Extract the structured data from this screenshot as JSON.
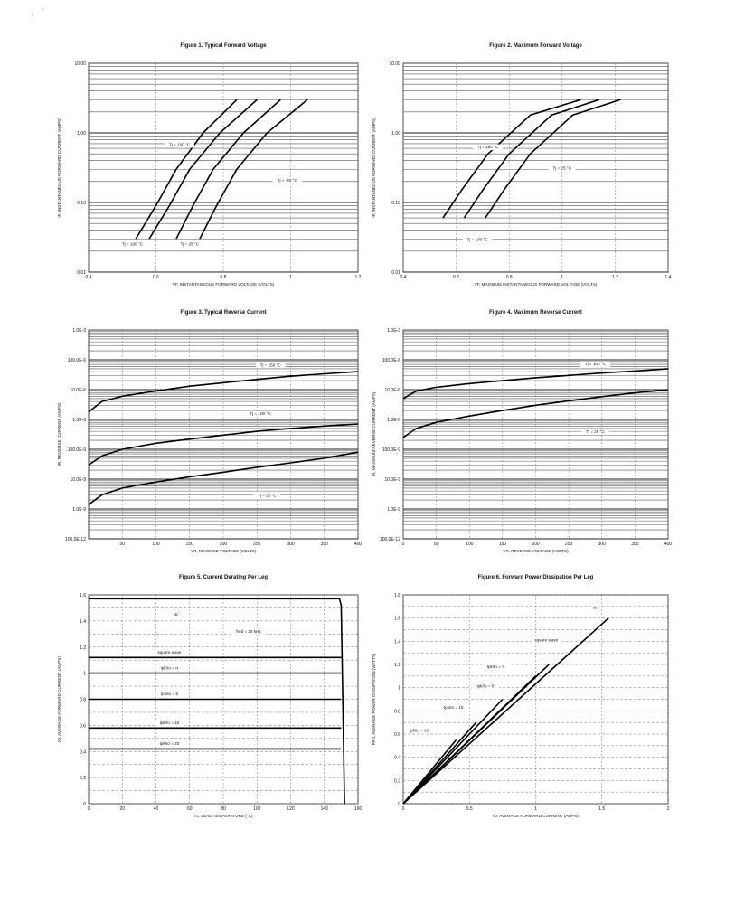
{
  "chart_data": [
    {
      "id": "fig1",
      "type": "line",
      "title": "Figure 1. Typical Forward Voltage",
      "xlabel": "VF, INSTANTANEOUS FORWARD VOLTAGE (VOLTS)",
      "ylabel": "IF, INSTANTANEOUS FORWARD CURRENT (AMPS)",
      "x_scale": "linear",
      "y_scale": "log",
      "xlim": [
        0.4,
        1.2
      ],
      "ylim": [
        0.01,
        10
      ],
      "x_ticks": [
        0.4,
        0.6,
        0.8,
        1.0,
        1.2
      ],
      "x_tick_labels": [
        "0.4",
        "0.6",
        "0.8",
        "1",
        "1.2"
      ],
      "y_ticks": [
        0.01,
        0.1,
        1,
        10
      ],
      "y_tick_labels": [
        "0.01",
        "0.10",
        "1.00",
        "10.00"
      ],
      "series": [
        {
          "points": [
            [
              0.54,
              0.03
            ],
            [
              0.6,
              0.09
            ],
            [
              0.66,
              0.3
            ],
            [
              0.74,
              1.0
            ],
            [
              0.84,
              3.0
            ]
          ]
        },
        {
          "points": [
            [
              0.58,
              0.03
            ],
            [
              0.64,
              0.09
            ],
            [
              0.7,
              0.3
            ],
            [
              0.79,
              1.0
            ],
            [
              0.9,
              3.0
            ]
          ]
        },
        {
          "points": [
            [
              0.66,
              0.03
            ],
            [
              0.71,
              0.09
            ],
            [
              0.77,
              0.3
            ],
            [
              0.86,
              1.0
            ],
            [
              0.97,
              3.0
            ]
          ]
        },
        {
          "points": [
            [
              0.73,
              0.03
            ],
            [
              0.78,
              0.09
            ],
            [
              0.84,
              0.3
            ],
            [
              0.93,
              1.0
            ],
            [
              1.05,
              3.0
            ]
          ]
        }
      ],
      "annotations": [
        {
          "text": "Tj = 150 °C",
          "x": 0.67,
          "y": 0.65
        },
        {
          "text": "Tj = -40 °C",
          "x": 0.99,
          "y": 0.2
        },
        {
          "text": "Tj = 100 °C",
          "x": 0.53,
          "y": 0.024
        },
        {
          "text": "Tj = 25 °C",
          "x": 0.7,
          "y": 0.024
        }
      ]
    },
    {
      "id": "fig2",
      "type": "line",
      "title": "Figure 2. Maximum Forward Voltage",
      "xlabel": "VF, MAXIMUM INSTANTANEOUS FORWARD VOLTAGE (VOLTS)",
      "ylabel": "IF, INSTANTANEOUS FORWARD CURRENT (AMPS)",
      "x_scale": "linear",
      "y_scale": "log",
      "xlim": [
        0.4,
        1.4
      ],
      "ylim": [
        0.01,
        10
      ],
      "x_ticks": [
        0.4,
        0.6,
        0.8,
        1.0,
        1.2,
        1.4
      ],
      "x_tick_labels": [
        "0.4",
        "0.6",
        "0.8",
        "1",
        "1.2",
        "1.4"
      ],
      "y_ticks": [
        0.01,
        0.1,
        1,
        10
      ],
      "y_tick_labels": [
        "0.01",
        "0.10",
        "1.00",
        "10.00"
      ],
      "series": [
        {
          "points": [
            [
              0.55,
              0.06
            ],
            [
              0.62,
              0.15
            ],
            [
              0.72,
              0.5
            ],
            [
              0.88,
              1.8
            ],
            [
              1.07,
              3.0
            ]
          ]
        },
        {
          "points": [
            [
              0.63,
              0.06
            ],
            [
              0.7,
              0.15
            ],
            [
              0.8,
              0.5
            ],
            [
              0.96,
              1.8
            ],
            [
              1.14,
              3.0
            ]
          ]
        },
        {
          "points": [
            [
              0.71,
              0.06
            ],
            [
              0.78,
              0.15
            ],
            [
              0.88,
              0.5
            ],
            [
              1.04,
              1.8
            ],
            [
              1.22,
              3.0
            ]
          ]
        }
      ],
      "annotations": [
        {
          "text": "Tj = 150 °C",
          "x": 0.72,
          "y": 0.6
        },
        {
          "text": "Tj = 25 °C",
          "x": 1.0,
          "y": 0.3
        },
        {
          "text": "Tj = 100 °C",
          "x": 0.68,
          "y": 0.028
        }
      ]
    },
    {
      "id": "fig3",
      "type": "line",
      "title": "Figure 3. Typical Reverse Current",
      "xlabel": "VR, REVERSE VOLTAGE (VOLTS)",
      "ylabel": "IR, REVERSE CURRENT (AMPS)",
      "x_scale": "linear",
      "y_scale": "log",
      "xlim": [
        0,
        400
      ],
      "ylim": [
        1e-10,
        0.001
      ],
      "x_ticks": [
        50,
        100,
        150,
        200,
        250,
        300,
        350,
        400
      ],
      "x_tick_labels": [
        "50",
        "100",
        "150",
        "200",
        "250",
        "300",
        "350",
        "400"
      ],
      "y_ticks": [
        1e-10,
        1e-09,
        1e-08,
        1e-07,
        1e-06,
        1e-05,
        0.0001,
        0.001
      ],
      "y_tick_labels": [
        "100.0E-12",
        "1.0E-9",
        "10.0E-9",
        "100.0E-9",
        "1.0E-6",
        "10.0E-6",
        "100.0E-6",
        "1.0E-3"
      ],
      "series": [
        {
          "points": [
            [
              0,
              1.8e-06
            ],
            [
              20,
              4e-06
            ],
            [
              50,
              6e-06
            ],
            [
              100,
              9e-06
            ],
            [
              150,
              1.3e-05
            ],
            [
              200,
              1.7e-05
            ],
            [
              250,
              2.2e-05
            ],
            [
              300,
              2.8e-05
            ],
            [
              350,
              3.4e-05
            ],
            [
              400,
              4e-05
            ]
          ]
        },
        {
          "points": [
            [
              0,
              3e-08
            ],
            [
              20,
              6e-08
            ],
            [
              50,
              1e-07
            ],
            [
              100,
              1.6e-07
            ],
            [
              150,
              2.2e-07
            ],
            [
              200,
              3e-07
            ],
            [
              250,
              4e-07
            ],
            [
              300,
              5e-07
            ],
            [
              350,
              6e-07
            ],
            [
              400,
              7e-07
            ]
          ]
        },
        {
          "points": [
            [
              0,
              1.4e-09
            ],
            [
              20,
              3e-09
            ],
            [
              50,
              5e-09
            ],
            [
              100,
              8e-09
            ],
            [
              150,
              1.2e-08
            ],
            [
              200,
              1.7e-08
            ],
            [
              250,
              2.5e-08
            ],
            [
              300,
              3.5e-08
            ],
            [
              350,
              5e-08
            ],
            [
              400,
              8e-08
            ]
          ]
        }
      ],
      "annotations": [
        {
          "text": "Tj = 150 °C",
          "x": 270,
          "y": 6e-05
        },
        {
          "text": "Tj = 100 °C",
          "x": 255,
          "y": 1.4e-06
        },
        {
          "text": "Tj = 25 °C",
          "x": 265,
          "y": 2.6e-09
        }
      ]
    },
    {
      "id": "fig4",
      "type": "line",
      "title": "Figure 4. Maximum Reverse Current",
      "xlabel": "VR, REVERSE VOLTAGE (VOLTS)",
      "ylabel": "IR, MAXIMUM REVERSE CURRENT (AMPS)",
      "x_scale": "linear",
      "y_scale": "log",
      "xlim": [
        0,
        400
      ],
      "ylim": [
        1e-10,
        0.001
      ],
      "x_ticks": [
        0,
        50,
        100,
        150,
        200,
        250,
        300,
        350,
        400
      ],
      "x_tick_labels": [
        "0",
        "50",
        "100",
        "150",
        "200",
        "250",
        "300",
        "350",
        "400"
      ],
      "y_ticks": [
        1e-10,
        1e-09,
        1e-08,
        1e-07,
        1e-06,
        1e-05,
        0.0001,
        0.001
      ],
      "y_tick_labels": [
        "100.0E-12",
        "1.0E-9",
        "10.0E-9",
        "100.0E-9",
        "1.0E-6",
        "10.0E-6",
        "100.0E-6",
        "1.0E-3"
      ],
      "series": [
        {
          "points": [
            [
              0,
              5e-06
            ],
            [
              20,
              9e-06
            ],
            [
              50,
              1.2e-05
            ],
            [
              100,
              1.6e-05
            ],
            [
              150,
              2e-05
            ],
            [
              200,
              2.5e-05
            ],
            [
              250,
              3e-05
            ],
            [
              300,
              3.6e-05
            ],
            [
              350,
              4.2e-05
            ],
            [
              400,
              5e-05
            ]
          ]
        },
        {
          "points": [
            [
              0,
              2.5e-07
            ],
            [
              20,
              5e-07
            ],
            [
              50,
              8e-07
            ],
            [
              100,
              1.3e-06
            ],
            [
              150,
              2e-06
            ],
            [
              200,
              3e-06
            ],
            [
              250,
              4.2e-06
            ],
            [
              300,
              5.8e-06
            ],
            [
              350,
              7.8e-06
            ],
            [
              400,
              1e-05
            ]
          ]
        }
      ],
      "annotations": [
        {
          "text": "Tj = 100 °C",
          "x": 290,
          "y": 6.5e-05
        },
        {
          "text": "Tj = 25 °C",
          "x": 290,
          "y": 3.5e-07
        }
      ]
    },
    {
      "id": "fig5",
      "type": "line",
      "title": "Figure 5. Current Derating Per Leg",
      "xlabel": "TL, LEAD TEMPERATURE (°C)",
      "ylabel": "IO, AVERAGE FORWARD CURRENT (AMPS)",
      "x_scale": "linear",
      "y_scale": "linear",
      "xlim": [
        0,
        160
      ],
      "ylim": [
        0,
        1.6
      ],
      "x_ticks": [
        0,
        20,
        40,
        60,
        80,
        100,
        120,
        140,
        160
      ],
      "x_tick_labels": [
        "0",
        "20",
        "40",
        "60",
        "80",
        "100",
        "120",
        "140",
        "160"
      ],
      "y_ticks": [
        0,
        0.2,
        0.4,
        0.6,
        0.8,
        1.0,
        1.2,
        1.4,
        1.6
      ],
      "y_tick_labels": [
        "0",
        "0.2",
        "0.4",
        "0.6",
        "0.8",
        "1",
        "1.2",
        "1.4",
        "1.6"
      ],
      "series": [
        {
          "name": "dc",
          "points": [
            [
              0,
              1.57
            ],
            [
              149,
              1.57
            ],
            [
              150,
              1.52
            ],
            [
              152,
              0
            ]
          ]
        },
        {
          "name": "square wave",
          "points": [
            [
              0,
              1.12
            ],
            [
              150,
              1.12
            ]
          ]
        },
        {
          "name": "Ipk/Io = π",
          "points": [
            [
              0,
              1.0
            ],
            [
              150,
              1.0
            ]
          ]
        },
        {
          "name": "Ipk/Io = 5",
          "points": [
            [
              0,
              0.8
            ],
            [
              150,
              0.8
            ]
          ]
        },
        {
          "name": "Ipk/Io = 10",
          "points": [
            [
              0,
              0.58
            ],
            [
              150,
              0.58
            ]
          ]
        },
        {
          "name": "Ipk/Io = 20",
          "points": [
            [
              0,
              0.42
            ],
            [
              150,
              0.42
            ]
          ]
        }
      ],
      "annotations": [
        {
          "text": "dc",
          "x": 52,
          "y": 1.44
        },
        {
          "text": "fred = 20 kHz",
          "x": 95,
          "y": 1.31
        },
        {
          "text": "square wave",
          "x": 48,
          "y": 1.15
        },
        {
          "text": "Ipk/Io = π",
          "x": 48,
          "y": 1.03
        },
        {
          "text": "Ipk/Io = 5",
          "x": 48,
          "y": 0.83
        },
        {
          "text": "Ipk/Io = 10",
          "x": 48,
          "y": 0.61
        },
        {
          "text": "Ipk/Io = 20",
          "x": 48,
          "y": 0.45
        }
      ]
    },
    {
      "id": "fig6",
      "type": "line",
      "title": "Figure 6. Forward Power Dissipation Per Leg",
      "xlabel": "IO, AVERAGE FORWARD CURRENT (AMPS)",
      "ylabel": "PFO, AVERAGE POWER DISSIPATION (WATTS)",
      "x_scale": "linear",
      "y_scale": "linear",
      "xlim": [
        0,
        2
      ],
      "ylim": [
        0,
        1.8
      ],
      "x_ticks": [
        0,
        0.5,
        1,
        1.5,
        2
      ],
      "x_tick_labels": [
        "0",
        "0.5",
        "1",
        "1.5",
        "2"
      ],
      "y_ticks": [
        0,
        0.2,
        0.4,
        0.6,
        0.8,
        1.0,
        1.2,
        1.4,
        1.6,
        1.8
      ],
      "y_tick_labels": [
        "0",
        "0.2",
        "0.4",
        "0.6",
        "0.8",
        "1",
        "1.2",
        "1.4",
        "1.6",
        "1.8"
      ],
      "series": [
        {
          "name": "dc",
          "points": [
            [
              0,
              0
            ],
            [
              1.55,
              1.6
            ]
          ]
        },
        {
          "name": "square wave",
          "points": [
            [
              0,
              0
            ],
            [
              1.1,
              1.2
            ]
          ]
        },
        {
          "name": "Ipk/Io = π",
          "points": [
            [
              0,
              0
            ],
            [
              1.0,
              1.1
            ]
          ]
        },
        {
          "name": "Ipk/Io = 5",
          "points": [
            [
              0,
              0
            ],
            [
              0.75,
              0.9
            ]
          ]
        },
        {
          "name": "Ipk/Io = 10",
          "points": [
            [
              0,
              0
            ],
            [
              0.55,
              0.7
            ]
          ]
        },
        {
          "name": "Ipk/Io = 20",
          "points": [
            [
              0,
              0
            ],
            [
              0.4,
              0.55
            ]
          ]
        }
      ],
      "annotations": [
        {
          "text": "dc",
          "x": 1.45,
          "y": 1.68
        },
        {
          "text": "square wave",
          "x": 1.08,
          "y": 1.4
        },
        {
          "text": "Ipk/Io = π",
          "x": 0.7,
          "y": 1.17
        },
        {
          "text": "Ipk/Io = 5",
          "x": 0.62,
          "y": 1.0
        },
        {
          "text": "Ipk/Io = 10",
          "x": 0.38,
          "y": 0.82
        },
        {
          "text": "Ipk/Io = 20",
          "x": 0.12,
          "y": 0.62
        }
      ]
    }
  ]
}
